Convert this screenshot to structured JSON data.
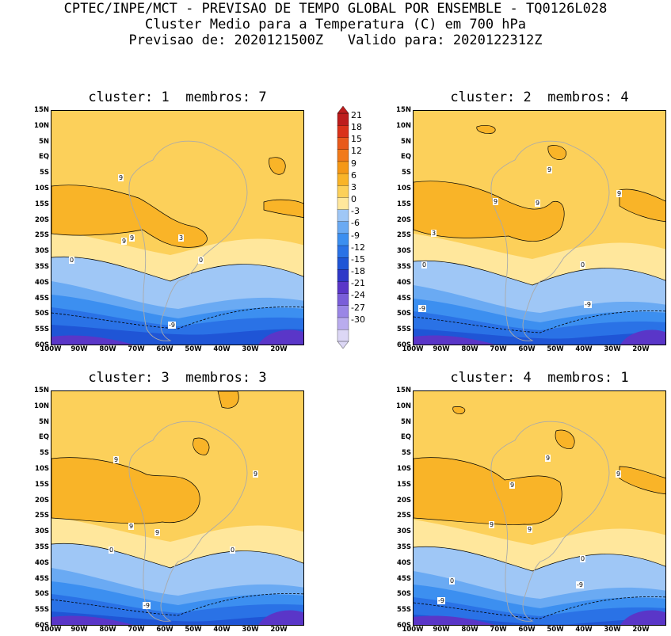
{
  "header": {
    "line1": "CPTEC/INPE/MCT - PREVISAO DE TEMPO GLOBAL POR ENSEMBLE - TQ0126L028",
    "line2": "Cluster Medio para a Temperatura (C) em 700 hPa",
    "line3": "Previsao de: 2020121500Z   Valido para: 2020122312Z"
  },
  "colors": {
    "levels": [
      "#dcd7f5",
      "#b9acee",
      "#9a86e6",
      "#7a5ed9",
      "#5a36c8",
      "#2e38c8",
      "#1f55d6",
      "#2a72e6",
      "#3c8ff0",
      "#6aaaf3",
      "#9fc7f6",
      "#ffe79c",
      "#fcd05a",
      "#f9b428",
      "#f59816",
      "#f17a1a",
      "#e85a1c",
      "#da321a",
      "#bd1c1c"
    ],
    "land_outline": "#aaaaaa"
  },
  "colorbar": {
    "ticks": [
      "21",
      "18",
      "15",
      "12",
      "9",
      "6",
      "3",
      "0",
      "-3",
      "-6",
      "-9",
      "-12",
      "-15",
      "-18",
      "-21",
      "-24",
      "-27",
      "-30"
    ]
  },
  "axes": {
    "lat_labels": [
      "15N",
      "10N",
      "5N",
      "EQ",
      "5S",
      "10S",
      "15S",
      "20S",
      "25S",
      "30S",
      "35S",
      "40S",
      "45S",
      "50S",
      "55S",
      "60S"
    ],
    "lon_labels": [
      "100W",
      "90W",
      "80W",
      "70W",
      "60W",
      "50W",
      "40W",
      "30W",
      "20W"
    ]
  },
  "panels": [
    {
      "title": "cluster: 1  membros: 7",
      "contour_labels": [
        "9",
        "9",
        "9",
        "3",
        "0",
        "0",
        "-9"
      ]
    },
    {
      "title": "cluster: 2  membros: 4",
      "contour_labels": [
        "9",
        "9",
        "9",
        "9",
        "3",
        "0",
        "0",
        "-9",
        "-9"
      ]
    },
    {
      "title": "cluster: 3  membros: 3",
      "contour_labels": [
        "9",
        "9",
        "9",
        "9",
        "0",
        "0",
        "-9"
      ]
    },
    {
      "title": "cluster: 4  membros: 1",
      "contour_labels": [
        "9",
        "9",
        "9",
        "9",
        "9",
        "0",
        "0",
        "-9",
        "-9"
      ]
    }
  ]
}
